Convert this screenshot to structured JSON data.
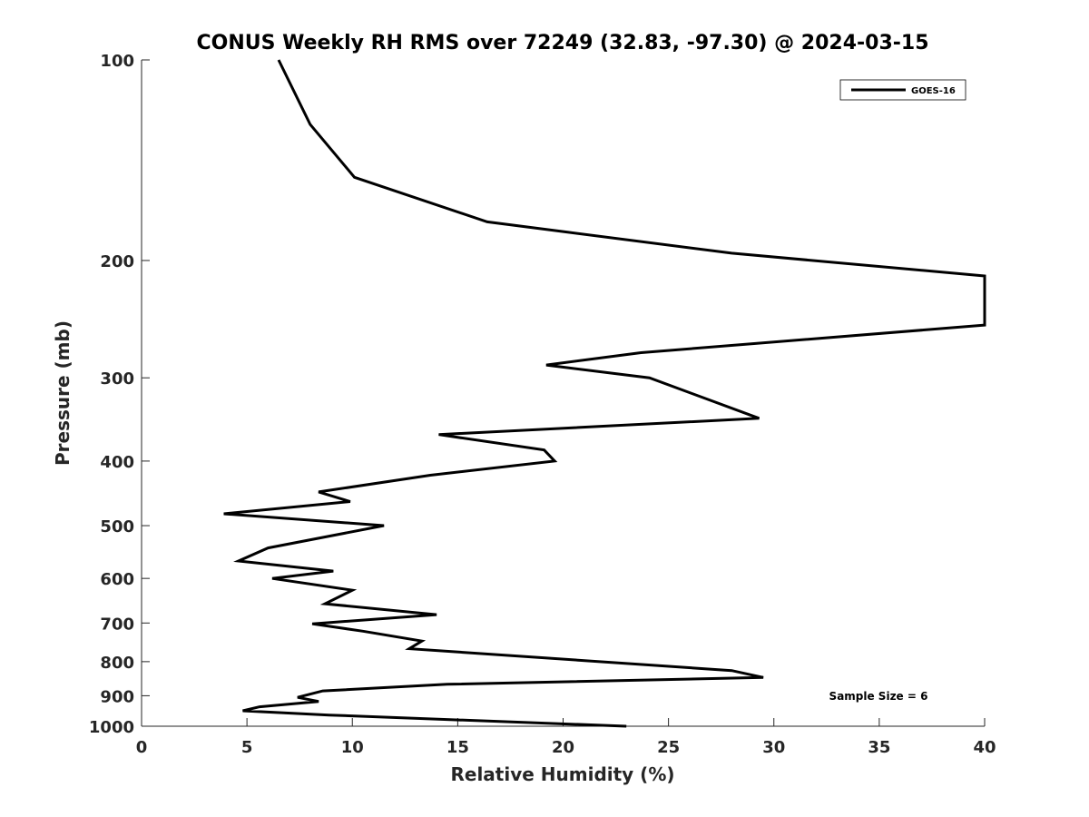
{
  "chart_data": {
    "type": "line",
    "title": "CONUS Weekly RH RMS over 72249 (32.83, -97.30) @ 2024-03-15",
    "xlabel": "Relative Humidity (%)",
    "ylabel": "Pressure (mb)",
    "xlim": [
      0,
      40
    ],
    "ylim": [
      100,
      1000
    ],
    "y_scale": "log",
    "y_reversed": true,
    "grid": false,
    "legend_placement": "top-right",
    "x_ticks": [
      0,
      5,
      10,
      15,
      20,
      25,
      30,
      35,
      40
    ],
    "x_tick_labels": [
      "0",
      "5",
      "10",
      "15",
      "20",
      "25",
      "30",
      "35",
      "40"
    ],
    "y_ticks": [
      100,
      200,
      300,
      400,
      500,
      600,
      700,
      800,
      900,
      1000
    ],
    "y_tick_labels": [
      "100",
      "200",
      "300",
      "400",
      "500",
      "600",
      "700",
      "800",
      "900",
      "1000"
    ],
    "annotation": "Sample Size = 6",
    "series": [
      {
        "name": "GOES-16",
        "color": "#000000",
        "points": [
          [
            6.5,
            100
          ],
          [
            8.0,
            125
          ],
          [
            10.1,
            150
          ],
          [
            16.4,
            175
          ],
          [
            28.0,
            195
          ],
          [
            40.0,
            211
          ],
          [
            40.0,
            250
          ],
          [
            23.7,
            275
          ],
          [
            19.2,
            287
          ],
          [
            24.1,
            300
          ],
          [
            29.3,
            345
          ],
          [
            14.1,
            365
          ],
          [
            19.1,
            385
          ],
          [
            19.6,
            400
          ],
          [
            13.7,
            420
          ],
          [
            8.4,
            445
          ],
          [
            9.9,
            460
          ],
          [
            3.9,
            480
          ],
          [
            11.5,
            500
          ],
          [
            6.0,
            540
          ],
          [
            4.6,
            565
          ],
          [
            9.1,
            585
          ],
          [
            6.2,
            600
          ],
          [
            10.0,
            625
          ],
          [
            8.7,
            655
          ],
          [
            14.0,
            680
          ],
          [
            8.1,
            702
          ],
          [
            10.5,
            720
          ],
          [
            13.3,
            745
          ],
          [
            12.7,
            765
          ],
          [
            28.0,
            825
          ],
          [
            29.5,
            845
          ],
          [
            14.5,
            865
          ],
          [
            8.6,
            885
          ],
          [
            7.4,
            905
          ],
          [
            8.4,
            918
          ],
          [
            5.6,
            935
          ],
          [
            4.8,
            948
          ],
          [
            8.9,
            962
          ],
          [
            23.0,
            1000
          ]
        ]
      }
    ]
  },
  "legend": {
    "label": "GOES-16"
  }
}
